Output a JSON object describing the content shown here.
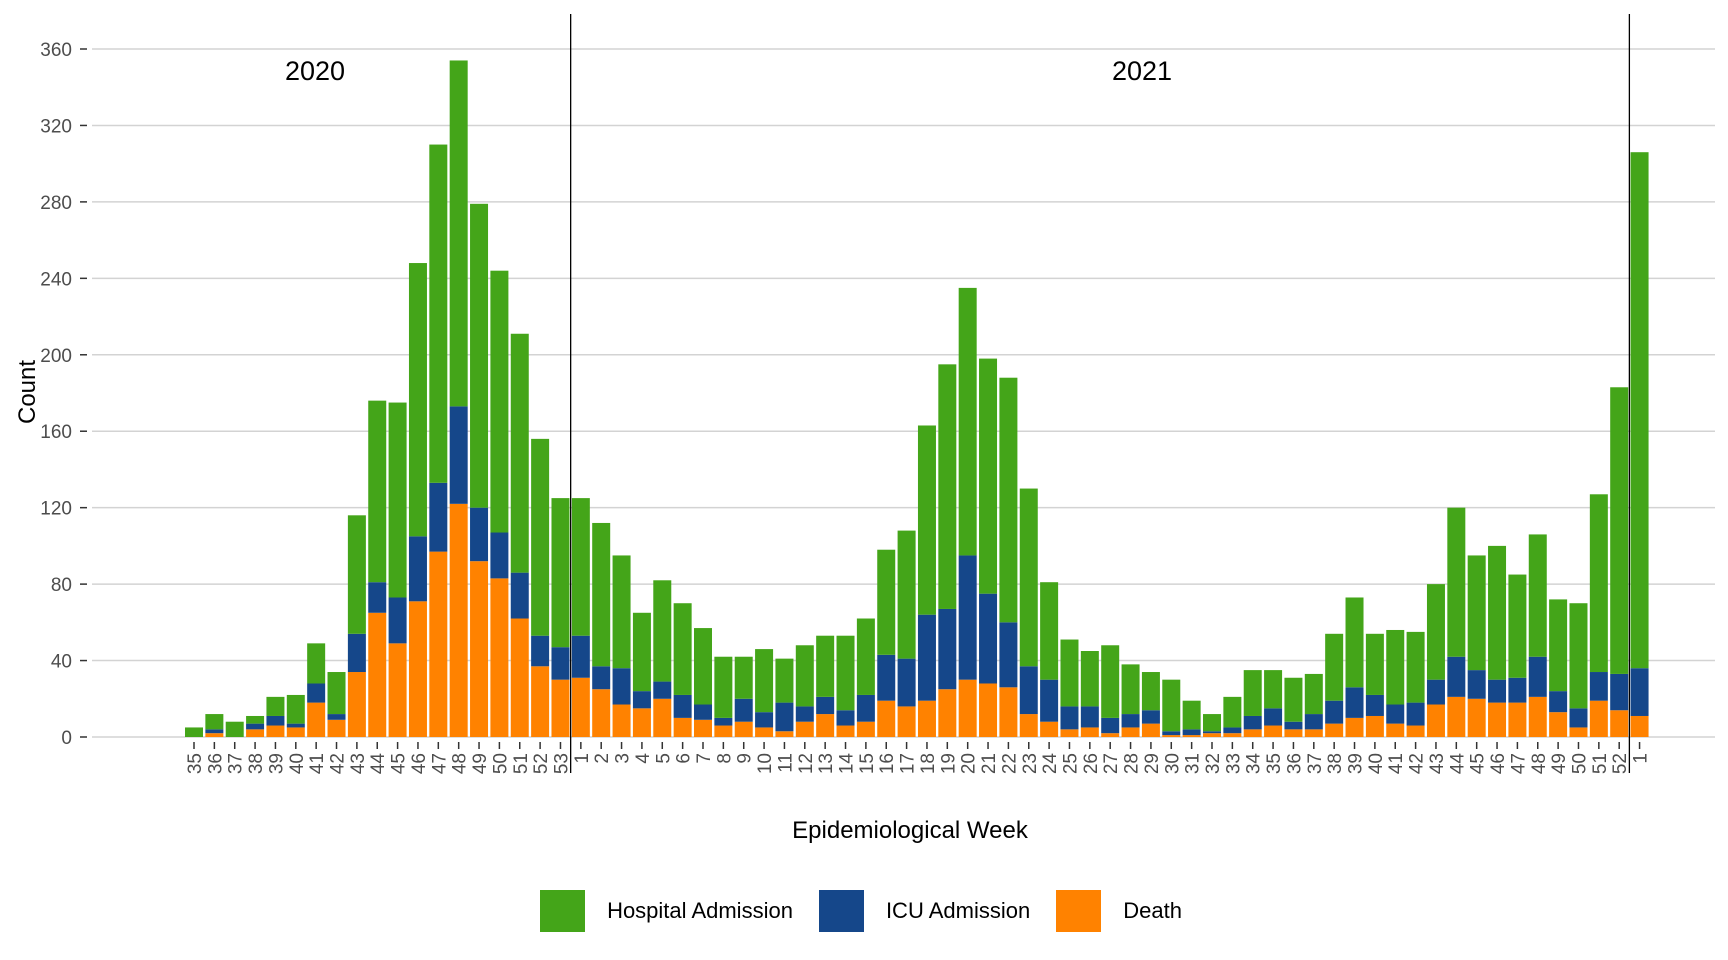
{
  "chart_data": {
    "type": "bar",
    "stacked": true,
    "title": "",
    "xlabel": "Epidemiological Week",
    "ylabel": "Count",
    "ylim": [
      0,
      360
    ],
    "yticks": [
      0,
      40,
      80,
      120,
      160,
      200,
      240,
      280,
      320,
      360
    ],
    "grid": true,
    "legend_position": "bottom",
    "year_annotations": [
      {
        "label": "2020",
        "after_index": null
      },
      {
        "label": "2021",
        "after_index": 18
      }
    ],
    "year_dividers_before_index": [
      19,
      71
    ],
    "categories": [
      "35",
      "36",
      "37",
      "38",
      "39",
      "40",
      "41",
      "42",
      "43",
      "44",
      "45",
      "46",
      "47",
      "48",
      "49",
      "50",
      "51",
      "52",
      "53",
      "1",
      "2",
      "3",
      "4",
      "5",
      "6",
      "7",
      "8",
      "9",
      "10",
      "11",
      "12",
      "13",
      "14",
      "15",
      "16",
      "17",
      "18",
      "19",
      "20",
      "21",
      "22",
      "23",
      "24",
      "25",
      "26",
      "27",
      "28",
      "29",
      "30",
      "31",
      "32",
      "33",
      "34",
      "35",
      "36",
      "37",
      "38",
      "39",
      "40",
      "41",
      "42",
      "43",
      "44",
      "45",
      "46",
      "47",
      "48",
      "49",
      "50",
      "51",
      "52",
      "1"
    ],
    "series": [
      {
        "name": "Hospital Admission",
        "color": "#44a519",
        "values": [
          5,
          8,
          8,
          4,
          10,
          15,
          21,
          22,
          62,
          95,
          102,
          143,
          177,
          181,
          159,
          137,
          125,
          103,
          78,
          72,
          75,
          59,
          41,
          53,
          48,
          40,
          32,
          22,
          33,
          23,
          32,
          32,
          39,
          40,
          55,
          67,
          99,
          128,
          140,
          123,
          128,
          93,
          51,
          35,
          29,
          38,
          26,
          20,
          27,
          15,
          9,
          16,
          24,
          20,
          23,
          21,
          35,
          47,
          32,
          39,
          37,
          50,
          78,
          60,
          70,
          54,
          64,
          48,
          55,
          93,
          150,
          270
        ]
      },
      {
        "name": "ICU Admission",
        "color": "#15478a",
        "values": [
          0,
          2,
          0,
          3,
          5,
          2,
          10,
          3,
          20,
          16,
          24,
          34,
          36,
          51,
          28,
          24,
          24,
          16,
          17,
          22,
          12,
          19,
          9,
          9,
          12,
          8,
          4,
          12,
          8,
          15,
          8,
          9,
          8,
          14,
          24,
          25,
          45,
          42,
          65,
          47,
          34,
          25,
          22,
          12,
          11,
          8,
          7,
          7,
          2,
          3,
          1,
          3,
          7,
          9,
          4,
          8,
          12,
          16,
          11,
          10,
          12,
          13,
          21,
          15,
          12,
          13,
          21,
          11,
          10,
          15,
          19,
          25
        ]
      },
      {
        "name": "Death",
        "color": "#ff8200",
        "values": [
          0,
          2,
          0,
          4,
          6,
          5,
          18,
          9,
          34,
          65,
          49,
          71,
          97,
          122,
          92,
          83,
          62,
          37,
          30,
          31,
          25,
          17,
          15,
          20,
          10,
          9,
          6,
          8,
          5,
          3,
          8,
          12,
          6,
          8,
          19,
          16,
          19,
          25,
          30,
          28,
          26,
          12,
          8,
          4,
          5,
          2,
          5,
          7,
          1,
          1,
          2,
          2,
          4,
          6,
          4,
          4,
          7,
          10,
          11,
          7,
          6,
          17,
          21,
          20,
          18,
          18,
          21,
          13,
          5,
          19,
          14,
          11
        ]
      }
    ]
  },
  "legend": {
    "items": [
      {
        "label": "Hospital Admission",
        "color": "#44a519"
      },
      {
        "label": "ICU Admission",
        "color": "#15478a"
      },
      {
        "label": "Death",
        "color": "#ff8200"
      }
    ]
  },
  "annotations": {
    "year_left": "2020",
    "year_right": "2021"
  }
}
